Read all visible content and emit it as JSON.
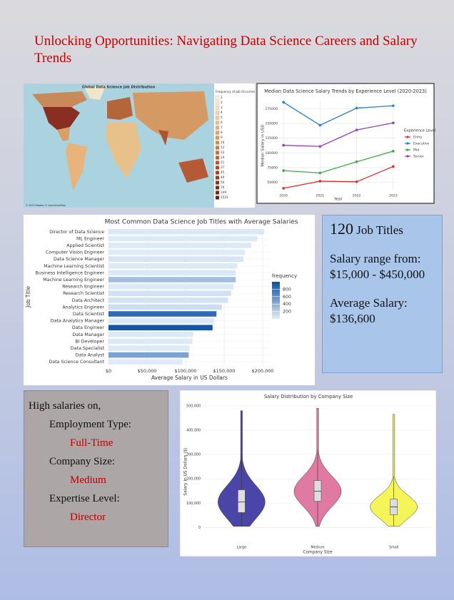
{
  "title": "Unlocking Opportunities: Navigating Data Science Careers and Salary Trends",
  "summary": {
    "count": "120",
    "count_label": "Job Titles",
    "range": "Salary range from:  $15,000 - $450,000",
    "average": "Average Salary: $136,600"
  },
  "highlights": {
    "heading": "High salaries on,",
    "items": [
      {
        "label": "Employment Type:",
        "value": "Full-Time"
      },
      {
        "label": "Company Size:",
        "value": "Medium"
      },
      {
        "label": "Expertise Level:",
        "value": "Director"
      }
    ]
  },
  "chart_data": [
    {
      "type": "choropleth",
      "title": "Global Data Science Job Distribution",
      "legend_title": "Frequency of Job Occurren",
      "legend_values": [
        1,
        2,
        3,
        4,
        5,
        6,
        7,
        8,
        9,
        10,
        12,
        13,
        14,
        21,
        27,
        45,
        49,
        50,
        70,
        249,
        1531
      ],
      "legend_colors": [
        "#fdf3e1",
        "#fbe9cf",
        "#f8dfbd",
        "#f5d4aa",
        "#f1c898",
        "#edbc86",
        "#e8b075",
        "#e2a365",
        "#dc9656",
        "#d58948",
        "#cd7c3c",
        "#c46f33",
        "#bb632c",
        "#b15727",
        "#a64c23",
        "#9b4220",
        "#90391d",
        "#85311b",
        "#7b2a19",
        "#712317",
        "#671d15"
      ],
      "credit": "© 2023 Mapbox © OpenStreetMap"
    },
    {
      "type": "line",
      "title": "Median Data Science Salary Trends by Experience Level (2020-2023)",
      "x": [
        2020,
        2021,
        2022,
        2023
      ],
      "xlim": [
        2019.9,
        2023.1
      ],
      "xticks": [
        2020,
        2021,
        2022,
        2023
      ],
      "xlabel": "Year",
      "ylabel": "Median Salary in USD",
      "legend_title": "Experience Level",
      "ylim": [
        35000,
        190000
      ],
      "yticks": [
        50000,
        75000,
        100000,
        125000,
        150000,
        175000
      ],
      "grid": true,
      "series": [
        {
          "name": "Entry",
          "color": "#d7302a",
          "values": [
            40000,
            52000,
            51000,
            77000
          ]
        },
        {
          "name": "Executive",
          "color": "#2b7bb9",
          "values": [
            186000,
            147000,
            176000,
            180000
          ]
        },
        {
          "name": "Mid",
          "color": "#3aaa46",
          "values": [
            70000,
            66000,
            85000,
            103000
          ]
        },
        {
          "name": "Senior",
          "color": "#9b3bb5",
          "values": [
            113000,
            111000,
            139000,
            151000
          ]
        }
      ]
    },
    {
      "type": "barh",
      "title": "Most Common Data Science Job Titles with Average Salaries",
      "categories": [
        "Director of Data Science",
        "ML Engineer",
        "Applied Scientist",
        "Computer Vision Engineer",
        "Data Science Manager",
        "Machine Learning Scientist",
        "Business Intelligence Engineer",
        "Machine Learning Engineer",
        "Research Engineer",
        "Research Scientist",
        "Data Architect",
        "Analytics Engineer",
        "Data Scientist",
        "Data Analytics Manager",
        "Data Engineer",
        "Data Manager",
        "BI Developer",
        "Data Specialist",
        "Data Analyst",
        "Data Science Consultant"
      ],
      "values": [
        202000,
        193000,
        185000,
        177000,
        175000,
        167000,
        165000,
        165000,
        162000,
        159000,
        155000,
        147000,
        140000,
        137000,
        135000,
        110000,
        109000,
        105000,
        104000,
        96000
      ],
      "frequency": [
        40,
        30,
        30,
        20,
        60,
        30,
        40,
        300,
        40,
        80,
        70,
        100,
        830,
        30,
        950,
        30,
        30,
        30,
        480,
        20
      ],
      "xlim": [
        0,
        210000
      ],
      "xticks": [
        {
          "value": 0,
          "label": "$0"
        },
        {
          "value": 50000,
          "label": "$50,000"
        },
        {
          "value": 100000,
          "label": "$100,000"
        },
        {
          "value": 150000,
          "label": "$150,000"
        },
        {
          "value": 200000,
          "label": "$200,000"
        }
      ],
      "xlabel": "Average Salary in US Dollars",
      "ylabel": "Job Title",
      "grid": true,
      "colorbar": {
        "title": "frequency",
        "lim": [
          0,
          1000
        ],
        "ticks": [
          200,
          400,
          600,
          800
        ],
        "colors": [
          "#e3eefa",
          "#0a4fa3"
        ]
      }
    },
    {
      "type": "violin",
      "title": "Salary Distribution by Company Size",
      "categories": [
        "Large",
        "Medium",
        "Small"
      ],
      "colors": [
        "#4b45a8",
        "#e07aa3",
        "#f5f55a"
      ],
      "stats": [
        {
          "min": 5000,
          "whisker_low": 5000,
          "q1": 62000,
          "median": 105000,
          "q3": 155000,
          "whisker_high": 300000,
          "max": 480000
        },
        {
          "min": 5000,
          "whisker_low": 5000,
          "q1": 108000,
          "median": 149000,
          "q3": 193000,
          "whisker_high": 320000,
          "max": 490000
        },
        {
          "min": 5000,
          "whisker_low": 5000,
          "q1": 53000,
          "median": 85000,
          "q3": 117000,
          "whisker_high": 210000,
          "max": 465000
        }
      ],
      "xlabel": "Company Size",
      "ylabel": "Salary in US Dollars ($)",
      "ylim": [
        -60000,
        520000
      ],
      "yticks": [
        0,
        {
          "value": 100000,
          "label": "100,000"
        },
        {
          "value": 200000,
          "label": "200,000"
        },
        {
          "value": 300000,
          "label": "300,000"
        },
        {
          "value": 400000,
          "label": "400,000"
        },
        {
          "value": 500000,
          "label": "500,000"
        }
      ],
      "grid": true
    }
  ]
}
